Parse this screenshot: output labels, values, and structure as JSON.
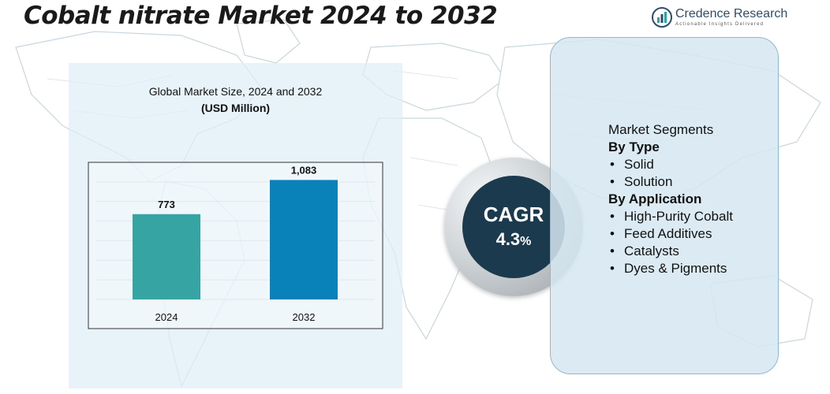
{
  "page": {
    "title": "Cobalt nitrate Market 2024 to 2032"
  },
  "brand": {
    "name": "Credence Research",
    "tagline": "Actionable Insights Delivered",
    "logo_icon": "rising-bars-logo-icon",
    "colors": {
      "primary": "#2c4d6b",
      "accent": "#2aa6a0"
    }
  },
  "chart_data": {
    "type": "bar",
    "title": "Global Market Size, 2024 and 2032",
    "unit_label": "(USD Million)",
    "categories": [
      "2024",
      "2032"
    ],
    "values": [
      773,
      1083
    ],
    "value_labels": [
      "773",
      "1,083"
    ],
    "ylim": [
      0,
      1200
    ],
    "grid": true,
    "colors": [
      "#35a4a2",
      "#0882b8"
    ],
    "xlabel": "",
    "ylabel": ""
  },
  "cagr": {
    "label": "CAGR",
    "value": "4.3",
    "unit": "%"
  },
  "segments": {
    "heading": "Market Segments",
    "groups": [
      {
        "title": "By Type",
        "items": [
          "Solid",
          "Solution"
        ]
      },
      {
        "title": "By Application",
        "items": [
          "High-Purity Cobalt",
          "Feed Additives",
          "Catalysts",
          "Dyes & Pigments"
        ]
      }
    ]
  }
}
